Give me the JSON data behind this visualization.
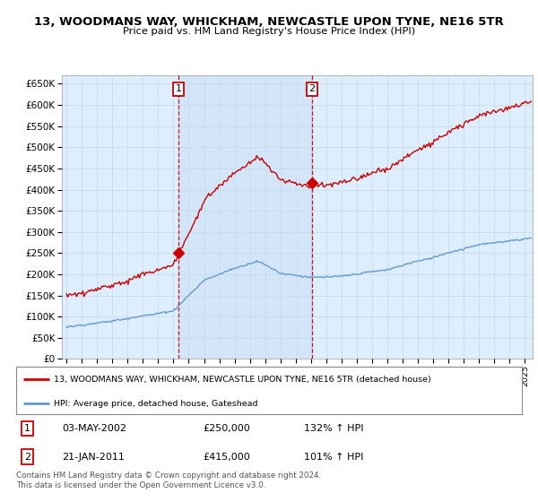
{
  "title": "13, WOODMANS WAY, WHICKHAM, NEWCASTLE UPON TYNE, NE16 5TR",
  "subtitle": "Price paid vs. HM Land Registry's House Price Index (HPI)",
  "ylim": [
    0,
    670000
  ],
  "yticks": [
    0,
    50000,
    100000,
    150000,
    200000,
    250000,
    300000,
    350000,
    400000,
    450000,
    500000,
    550000,
    600000,
    650000
  ],
  "ytick_labels": [
    "£0",
    "£50K",
    "£100K",
    "£150K",
    "£200K",
    "£250K",
    "£300K",
    "£350K",
    "£400K",
    "£450K",
    "£500K",
    "£550K",
    "£600K",
    "£650K"
  ],
  "sale1_date": 2002.34,
  "sale1_price": 250000,
  "sale1_label": "1",
  "sale2_date": 2011.05,
  "sale2_price": 415000,
  "sale2_label": "2",
  "line1_color": "#cc0000",
  "line2_color": "#6699cc",
  "shade_color": "#ddeeff",
  "annotation_box_color": "#cc0000",
  "grid_color": "#c8d8e8",
  "plot_bg_color": "#ddeeff",
  "legend_entry1": "13, WOODMANS WAY, WHICKHAM, NEWCASTLE UPON TYNE, NE16 5TR (detached house)",
  "legend_entry2": "HPI: Average price, detached house, Gateshead",
  "table_row1": [
    "1",
    "03-MAY-2002",
    "£250,000",
    "132% ↑ HPI"
  ],
  "table_row2": [
    "2",
    "21-JAN-2011",
    "£415,000",
    "101% ↑ HPI"
  ],
  "copyright_text": "Contains HM Land Registry data © Crown copyright and database right 2024.\nThis data is licensed under the Open Government Licence v3.0.",
  "xmin": 1994.7,
  "xmax": 2025.5,
  "xtick_years": [
    1995,
    1996,
    1997,
    1998,
    1999,
    2000,
    2001,
    2002,
    2003,
    2004,
    2005,
    2006,
    2007,
    2008,
    2009,
    2010,
    2011,
    2012,
    2013,
    2014,
    2015,
    2016,
    2017,
    2018,
    2019,
    2020,
    2021,
    2022,
    2023,
    2024,
    2025
  ]
}
